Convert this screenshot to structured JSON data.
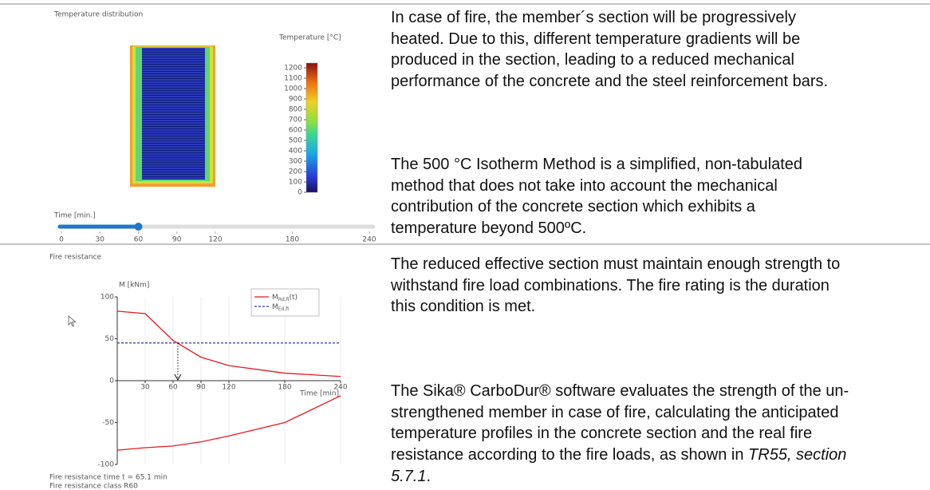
{
  "temperature_panel": {
    "title": "Temperature distribution",
    "colorbar": {
      "label": "Temperature [°C]",
      "lim": [
        0,
        1200
      ],
      "ticks": [
        0,
        100,
        200,
        300,
        400,
        500,
        600,
        700,
        800,
        900,
        1000,
        1100,
        1200
      ]
    },
    "slider": {
      "label": "Time [min.]",
      "lim": [
        0,
        240
      ],
      "value": 60,
      "ticks": [
        0,
        30,
        60,
        90,
        120,
        180,
        240
      ]
    }
  },
  "chart_data": {
    "type": "line",
    "title": "Fire resistance",
    "y_label": "M [kNm]",
    "x_label": "Time [min]",
    "x": [
      0,
      30,
      60,
      90,
      120,
      180,
      240
    ],
    "xlim": [
      0,
      240
    ],
    "xticks": [
      30,
      60,
      90,
      120,
      180,
      240
    ],
    "ylim": [
      -100,
      100
    ],
    "yticks": [
      -100,
      -50,
      0,
      50,
      100
    ],
    "grid": true,
    "legend": "top-right",
    "series": [
      {
        "name": "M",
        "subscript": "Rd,fi",
        "suffix": "(t)",
        "color": "#e8191f",
        "values": [
          83,
          80,
          48,
          28,
          18,
          9,
          5
        ]
      },
      {
        "color": "#e8191f",
        "values": [
          -83,
          -80,
          -78,
          -73,
          -66,
          -50,
          -18
        ]
      },
      {
        "name": "M",
        "subscript": "Ed,fi",
        "color": "#2b3a9b",
        "dashed": true,
        "values": [
          45,
          45,
          45,
          45,
          45,
          45,
          45
        ]
      }
    ],
    "marker_x": 65.1,
    "notes": [
      "Fire resistance time t = 65.1 min",
      "Fire resistance class R60"
    ]
  },
  "text": {
    "top": [
      [
        "In case of fire, the member´s section will be progressively",
        "heated. Due to this, different temperature gradients will be",
        "produced in the section, leading to a reduced mechanical",
        "performance of the concrete and the steel reinforcement bars."
      ],
      [
        "The 500 °C Isotherm Method is a simplified, non-tabulated",
        "method that does not take into account the mechanical",
        "contribution of the concrete section which exhibits a",
        "temperature beyond 500ºC."
      ]
    ],
    "bottom": [
      [
        "The reduced effective section must maintain enough strength to",
        "withstand fire load combinations. The fire rating is the duration",
        "this condition is met."
      ],
      [
        "The Sika® CarboDur® software evaluates the strength of the un-",
        "strengthened member in case of fire, calculating the anticipated",
        "temperature profiles in the concrete section and the real fire",
        [
          {
            "text": "resistance according to the fire loads, as shown in "
          },
          {
            "text": "TR55, section",
            "italic": true
          }
        ],
        [
          {
            "text": "5.7.1",
            "italic": true
          },
          {
            "text": "."
          }
        ]
      ]
    ]
  }
}
